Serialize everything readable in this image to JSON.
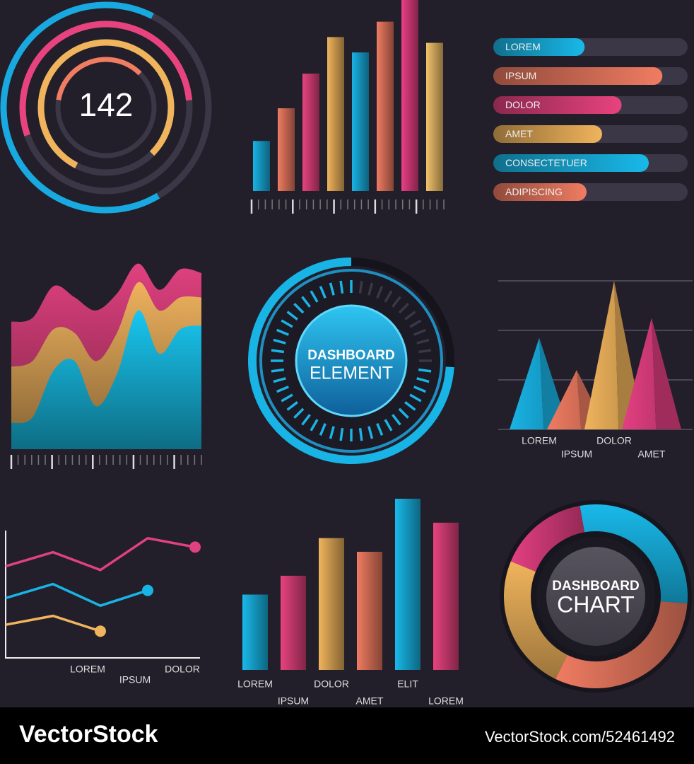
{
  "chart_data": [
    {
      "type": "radial",
      "value": 142,
      "values": [
        66,
        54,
        80,
        35
      ],
      "colors": [
        "#18a9e0",
        "#e8437f",
        "#f0b45c",
        "#f07c62"
      ]
    },
    {
      "type": "bar",
      "values": [
        26,
        43,
        61,
        80,
        72,
        88,
        100,
        77
      ],
      "colors": [
        "#19b2e4",
        "#f07c62",
        "#e8437f",
        "#f0b45c",
        "#19b2e4",
        "#f07c62",
        "#ea3f86",
        "#f3c36b"
      ],
      "ylim": [
        0,
        100
      ]
    },
    {
      "type": "progress",
      "categories": [
        "LOREM",
        "IPSUM",
        "DOLOR",
        "AMET",
        "CONSECTETUER",
        "ADIPISCING"
      ],
      "values": [
        47,
        87,
        66,
        56,
        80,
        48
      ],
      "colors": [
        "#19b9ea",
        "#f07c62",
        "#e8437f",
        "#f0b45c",
        "#19b9ea",
        "#f07c62"
      ],
      "xlim": [
        0,
        100
      ]
    },
    {
      "type": "area",
      "series": [
        {
          "color": "#e0417f",
          "values": [
            68,
            70,
            87,
            81,
            74,
            83,
            99,
            85,
            96,
            94
          ]
        },
        {
          "color": "#efb25e",
          "values": [
            44,
            47,
            64,
            62,
            47,
            62,
            89,
            74,
            81,
            81
          ]
        },
        {
          "color": "#19c6f0",
          "values": [
            14,
            17,
            42,
            47,
            23,
            40,
            74,
            51,
            64,
            66
          ]
        }
      ],
      "ylim": [
        0,
        100
      ]
    },
    {
      "type": "gauge",
      "title": "DASHBOARD",
      "subtitle": "ELEMENT",
      "value": 74,
      "color": "#19b4e6",
      "ylim": [
        0,
        100
      ]
    },
    {
      "type": "cone",
      "categories": [
        "LOREM",
        "IPSUM",
        "DOLOR",
        "AMET"
      ],
      "values": [
        1.85,
        1.2,
        3,
        2.25
      ],
      "colors": [
        "#19b4e6",
        "#f07c62",
        "#f0b45c",
        "#e43f82"
      ],
      "ylim": [
        0,
        3
      ],
      "yticks": [
        0,
        1,
        2,
        3
      ],
      "grid": true
    },
    {
      "type": "line",
      "categories": [
        null,
        null,
        "LOREM",
        "IPSUM",
        "DOLOR"
      ],
      "series": [
        {
          "color": "#e0417f",
          "values": [
            7.2,
            8.3,
            6.9,
            9.4,
            8.7
          ]
        },
        {
          "color": "#19b4e6",
          "values": [
            4.7,
            5.8,
            4.1,
            5.3,
            null
          ]
        },
        {
          "color": "#f0b45c",
          "values": [
            2.6,
            3.3,
            2.1,
            null,
            null
          ]
        }
      ],
      "ylim": [
        0,
        10
      ]
    },
    {
      "type": "bar",
      "categories": [
        "LOREM",
        "IPSUM",
        "DOLOR",
        "AMET",
        "ELIT",
        "LOREM"
      ],
      "values": [
        44,
        55,
        77,
        69,
        100,
        86
      ],
      "colors": [
        "#19b9ea",
        "#e8437f",
        "#f0b45c",
        "#f07c62",
        "#19b9ea",
        "#e8437f"
      ],
      "ylim": [
        0,
        100
      ]
    },
    {
      "type": "donut",
      "title": "DASHBOARD",
      "subtitle": "CHART",
      "values": [
        29,
        31,
        24,
        16
      ],
      "colors": [
        "#19b9ea",
        "#f07c62",
        "#f0b45c",
        "#e43f82"
      ]
    }
  ],
  "footer": {
    "brand": "VectorStock",
    "url": "VectorStock.com/52461492"
  }
}
